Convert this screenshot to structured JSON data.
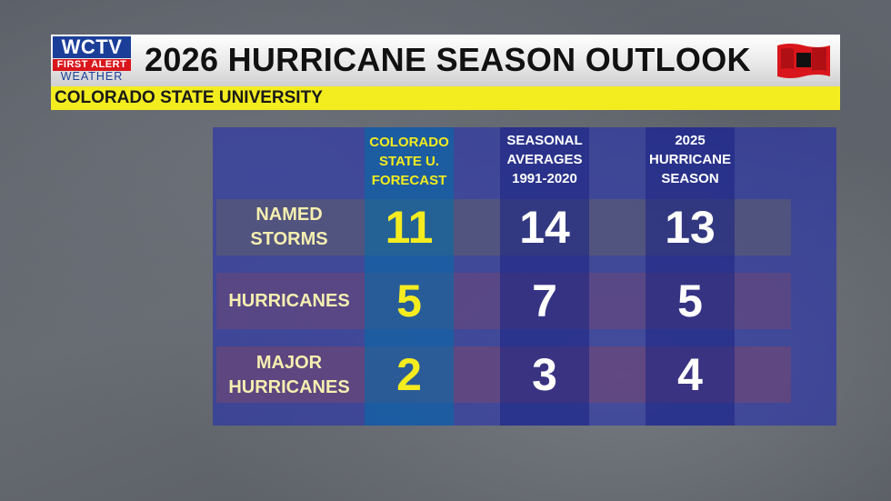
{
  "header": {
    "title": "2026 HURRICANE SEASON OUTLOOK",
    "subtitle": "COLORADO STATE UNIVERSITY",
    "logo": {
      "line1": "WCTV",
      "line2": "FIRST ALERT",
      "line3": "WEATHER"
    },
    "flag_icon": "hurricane-warning-flag-icon"
  },
  "colors": {
    "accent_yellow": "#f3ec1f",
    "logo_blue": "#1b3f99",
    "logo_red": "#d9161c",
    "flag_red": "#d9161c"
  },
  "table": {
    "columns": [
      {
        "lines": [
          "COLORADO",
          "STATE U.",
          "FORECAST"
        ]
      },
      {
        "lines": [
          "SEASONAL",
          "AVERAGES",
          "1991-2020"
        ]
      },
      {
        "lines": [
          "2025",
          "HURRICANE",
          "SEASON"
        ]
      }
    ],
    "rows": [
      {
        "label_lines": [
          "NAMED",
          "STORMS"
        ],
        "values": [
          "11",
          "14",
          "13"
        ]
      },
      {
        "label_lines": [
          "HURRICANES"
        ],
        "values": [
          "5",
          "7",
          "5"
        ]
      },
      {
        "label_lines": [
          "MAJOR",
          "HURRICANES"
        ],
        "values": [
          "2",
          "3",
          "4"
        ]
      }
    ]
  }
}
